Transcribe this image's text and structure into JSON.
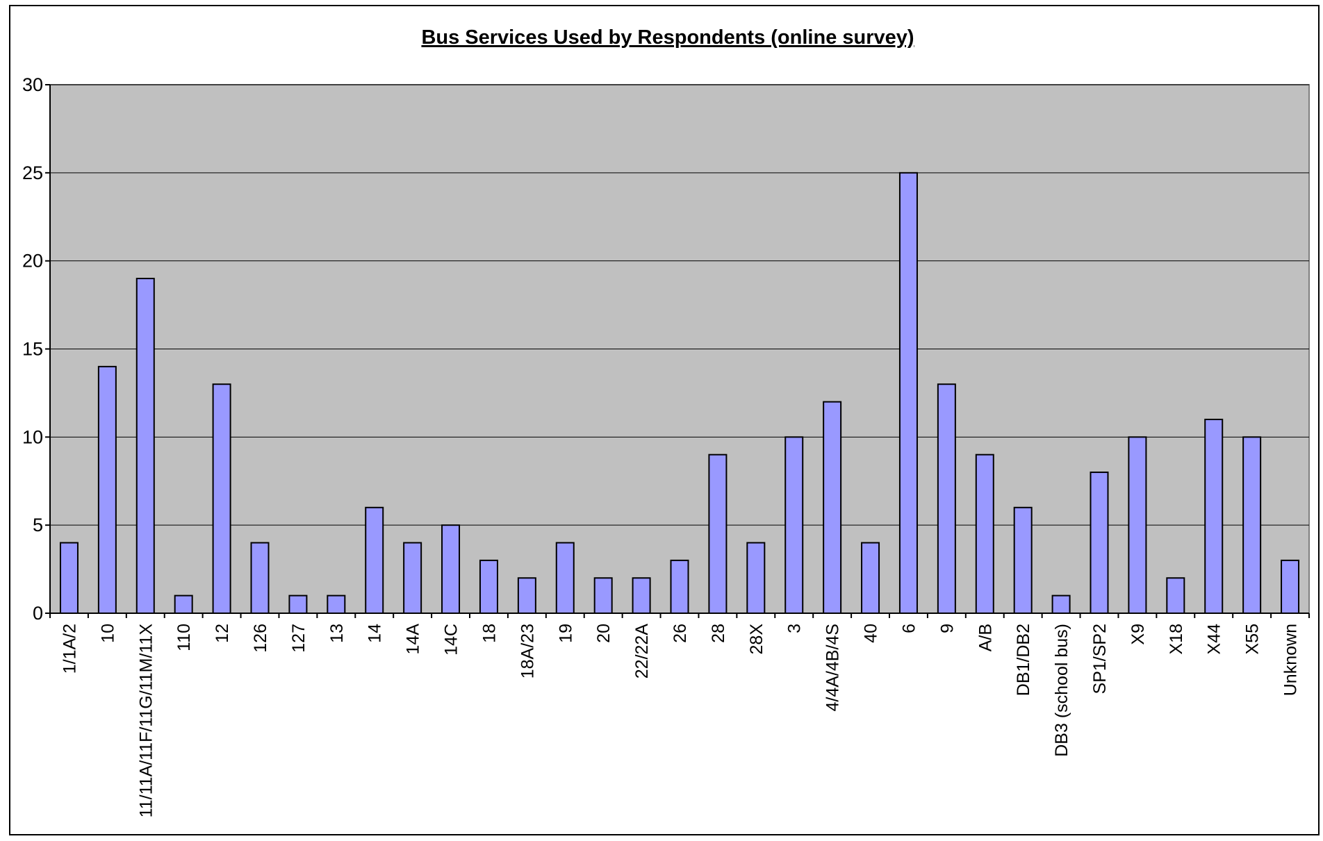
{
  "chart_data": {
    "type": "bar",
    "title": "Bus Services Used by Respondents (online survey)",
    "xlabel": "",
    "ylabel": "",
    "ylim": [
      0,
      30
    ],
    "yticks": [
      0,
      5,
      10,
      15,
      20,
      25,
      30
    ],
    "grid": true,
    "legend": "none",
    "plot_background": "#c0c0c0",
    "bar_color": "#9999ff",
    "categories": [
      "1/1A/2",
      "10",
      "11/11A/11F/11G/11M/11X",
      "110",
      "12",
      "126",
      "127",
      "13",
      "14",
      "14A",
      "14C",
      "18",
      "18A/23",
      "19",
      "20",
      "22/22A",
      "26",
      "28",
      "28X",
      "3",
      "4/4A/4B/4S",
      "40",
      "6",
      "9",
      "A/B",
      "DB1/DB2",
      "DB3 (school bus)",
      "SP1/SP2",
      "X9",
      "X18",
      "X44",
      "X55",
      "Unknown"
    ],
    "values": [
      4,
      14,
      19,
      1,
      13,
      4,
      1,
      1,
      6,
      4,
      5,
      3,
      2,
      4,
      2,
      2,
      3,
      9,
      4,
      10,
      12,
      4,
      25,
      13,
      9,
      6,
      1,
      8,
      10,
      2,
      11,
      10,
      3
    ]
  }
}
